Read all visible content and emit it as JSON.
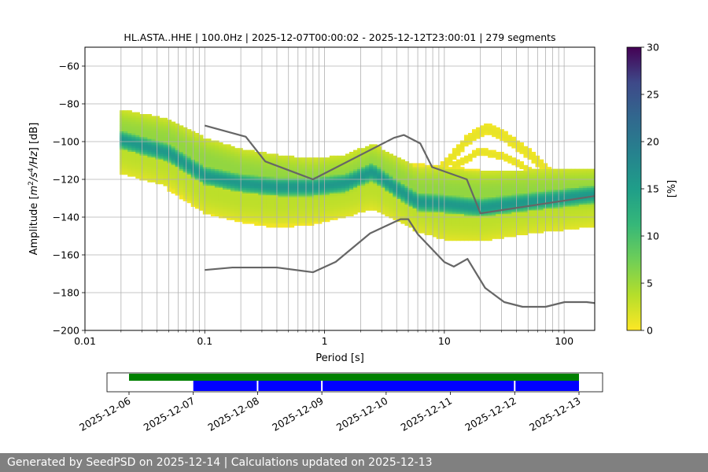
{
  "chart_data": {
    "type": "heatmap",
    "title": "HL.ASTA..HHE | 100.0Hz | 2025-12-07T00:00:02 - 2025-12-12T23:00:01 | 279 segments",
    "xlabel": "Period [s]",
    "ylabel_parts": [
      "Amplitude [",
      "m",
      "2",
      "/s",
      "4",
      "/Hz",
      "] [dB]"
    ],
    "x_scale": "log",
    "xlim": [
      0.01,
      180
    ],
    "ylim": [
      -200,
      -50
    ],
    "x_ticks": [
      {
        "value": 0.01,
        "label": "0.01"
      },
      {
        "value": 0.1,
        "label": "0.1"
      },
      {
        "value": 1,
        "label": "1"
      },
      {
        "value": 10,
        "label": "10"
      },
      {
        "value": 100,
        "label": "100"
      }
    ],
    "y_ticks": [
      {
        "value": -200,
        "label": "−200"
      },
      {
        "value": -180,
        "label": "−180"
      },
      {
        "value": -160,
        "label": "−160"
      },
      {
        "value": -140,
        "label": "−140"
      },
      {
        "value": -120,
        "label": "−120"
      },
      {
        "value": -100,
        "label": "−100"
      },
      {
        "value": -80,
        "label": "−80"
      },
      {
        "value": -60,
        "label": "−60"
      }
    ],
    "grid": true,
    "colormap": "viridis_r",
    "colorbar": {
      "label": "[%]",
      "range": [
        0,
        30
      ],
      "ticks": [
        {
          "value": 0,
          "label": "0"
        },
        {
          "value": 5,
          "label": "5"
        },
        {
          "value": 10,
          "label": "10"
        },
        {
          "value": 15,
          "label": "15"
        },
        {
          "value": 20,
          "label": "20"
        },
        {
          "value": 25,
          "label": "25"
        },
        {
          "value": 30,
          "label": "30"
        }
      ]
    },
    "density_bands": [
      {
        "points": [
          [
            0.02,
            -99
          ],
          [
            0.05,
            -106
          ],
          [
            0.1,
            -118
          ],
          [
            0.2,
            -122
          ],
          [
            0.4,
            -124
          ],
          [
            0.8,
            -124
          ],
          [
            1.5,
            -122
          ],
          [
            2.5,
            -116
          ],
          [
            4,
            -125
          ],
          [
            6,
            -132
          ],
          [
            10,
            -133
          ],
          [
            20,
            -135
          ],
          [
            50,
            -132
          ],
          [
            180,
            -128
          ]
        ],
        "width_db": 5,
        "percent": 14
      },
      {
        "points": [
          [
            0.02,
            -95
          ],
          [
            0.05,
            -100
          ],
          [
            0.1,
            -110
          ],
          [
            0.2,
            -116
          ],
          [
            0.4,
            -119
          ],
          [
            0.8,
            -121
          ],
          [
            1.5,
            -119
          ],
          [
            2.5,
            -113
          ],
          [
            4,
            -120
          ],
          [
            6,
            -126
          ],
          [
            10,
            -126
          ],
          [
            20,
            -128
          ],
          [
            50,
            -127
          ],
          [
            180,
            -126
          ]
        ],
        "width_db": 12,
        "percent": 5
      },
      {
        "points": [
          [
            0.02,
            -105
          ],
          [
            0.05,
            -112
          ],
          [
            0.1,
            -126
          ],
          [
            0.2,
            -130
          ],
          [
            0.4,
            -132
          ],
          [
            0.8,
            -131
          ],
          [
            1.5,
            -128
          ],
          [
            2.5,
            -124
          ],
          [
            4,
            -130
          ],
          [
            6,
            -136
          ],
          [
            10,
            -140
          ],
          [
            20,
            -141
          ],
          [
            50,
            -137
          ],
          [
            180,
            -133
          ]
        ],
        "width_db": 12,
        "percent": 3
      },
      {
        "points": [
          [
            0.02,
            -90
          ],
          [
            0.05,
            -95
          ],
          [
            0.1,
            -104
          ],
          [
            0.2,
            -110
          ],
          [
            0.4,
            -113
          ],
          [
            0.8,
            -116
          ],
          [
            1.5,
            -116
          ],
          [
            2.5,
            -112
          ],
          [
            4,
            -116
          ],
          [
            6,
            -121
          ],
          [
            10,
            -121
          ],
          [
            20,
            -123
          ],
          [
            50,
            -123
          ],
          [
            180,
            -124
          ]
        ],
        "width_db": 6,
        "percent": 1
      },
      {
        "points": [
          [
            0.05,
            -120
          ],
          [
            0.1,
            -132
          ],
          [
            0.2,
            -137
          ],
          [
            0.4,
            -140
          ],
          [
            0.8,
            -138
          ],
          [
            1.5,
            -134
          ],
          [
            2.5,
            -130
          ],
          [
            4,
            -134
          ],
          [
            6,
            -139
          ],
          [
            10,
            -144
          ],
          [
            20,
            -146
          ],
          [
            50,
            -140
          ],
          [
            180,
            -135
          ]
        ],
        "width_db": 6,
        "percent": 1
      },
      {
        "points": [
          [
            0.15,
            -108
          ],
          [
            0.3,
            -110
          ],
          [
            1,
            -113
          ],
          [
            3,
            -114
          ],
          [
            7,
            -114
          ],
          [
            15,
            -116
          ],
          [
            40,
            -120
          ],
          [
            180,
            -122
          ]
        ],
        "width_db": 2,
        "percent": 1
      },
      {
        "points": [
          [
            9,
            -116
          ],
          [
            15,
            -100
          ],
          [
            22,
            -93
          ],
          [
            30,
            -96
          ],
          [
            50,
            -106
          ],
          [
            80,
            -118
          ],
          [
            120,
            -124
          ]
        ],
        "width_db": 3,
        "percent": 1
      },
      {
        "points": [
          [
            12,
            -113
          ],
          [
            20,
            -105
          ],
          [
            35,
            -109
          ],
          [
            60,
            -118
          ],
          [
            100,
            -124
          ]
        ],
        "width_db": 2,
        "percent": 1
      }
    ],
    "noise_models": [
      {
        "name": "high",
        "points": [
          [
            0.1,
            -91.5
          ],
          [
            0.22,
            -97.4
          ],
          [
            0.32,
            -110.5
          ],
          [
            0.8,
            -120
          ],
          [
            3.8,
            -98
          ],
          [
            4.6,
            -96.5
          ],
          [
            6.3,
            -101
          ],
          [
            7.9,
            -113.5
          ],
          [
            15.4,
            -120
          ],
          [
            20,
            -138
          ],
          [
            354.8,
            -126
          ]
        ]
      },
      {
        "name": "low",
        "points": [
          [
            0.1,
            -168
          ],
          [
            0.17,
            -166.7
          ],
          [
            0.4,
            -166.7
          ],
          [
            0.8,
            -169.2
          ],
          [
            1.24,
            -163.7
          ],
          [
            2.4,
            -148.6
          ],
          [
            4.3,
            -141.1
          ],
          [
            5,
            -141.1
          ],
          [
            6,
            -149
          ],
          [
            10,
            -163.8
          ],
          [
            12,
            -166.2
          ],
          [
            15.6,
            -162.1
          ],
          [
            21.9,
            -177.5
          ],
          [
            31.6,
            -185
          ],
          [
            45,
            -187.5
          ],
          [
            70,
            -187.5
          ],
          [
            101,
            -185
          ],
          [
            154,
            -185
          ],
          [
            328,
            -187.5
          ]
        ]
      }
    ],
    "timeline": {
      "ticks": [
        "2025-12-06",
        "2025-12-07",
        "2025-12-08",
        "2025-12-09",
        "2025-12-10",
        "2025-12-11",
        "2025-12-12",
        "2025-12-13"
      ],
      "data_available": {
        "start_day": 0,
        "end_day": 7
      },
      "psd_coverage": {
        "start_day": 1,
        "end_day": 7,
        "gap_days": [
          2,
          3,
          6
        ]
      }
    }
  },
  "footer": {
    "text": "Generated by SeedPSD on 2025-12-14 | Calculations updated on 2025-12-13"
  }
}
